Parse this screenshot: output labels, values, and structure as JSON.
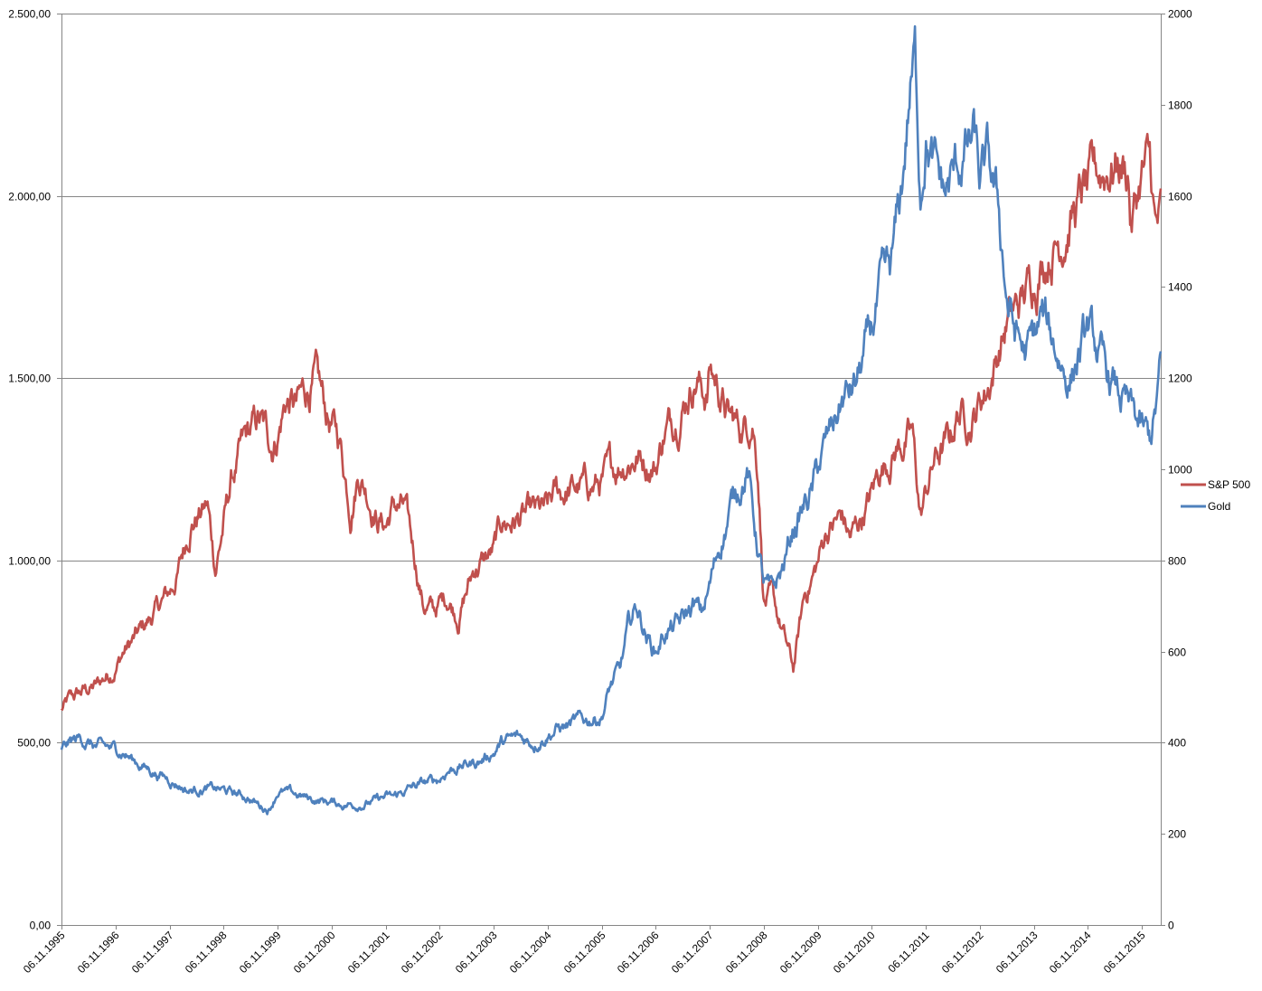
{
  "chart_data": {
    "type": "line",
    "title": "",
    "xlabel": "",
    "ylabel": "",
    "ylabel_right": "",
    "grid": true,
    "legend_position": "right",
    "x_ticks": [
      "06.11.1995",
      "06.11.1996",
      "06.11.1997",
      "06.11.1998",
      "06.11.1999",
      "06.11.2000",
      "06.11.2001",
      "06.11.2002",
      "06.11.2003",
      "06.11.2004",
      "06.11.2005",
      "06.11.2006",
      "06.11.2007",
      "06.11.2008",
      "06.11.2009",
      "06.11.2010",
      "06.11.2011",
      "06.11.2012",
      "06.11.2013",
      "06.11.2014",
      "06.11.2015"
    ],
    "y_left": {
      "ylim": [
        0,
        2500
      ],
      "ticks": [
        0,
        500,
        1000,
        1500,
        2000,
        2500
      ],
      "tick_labels": [
        "0,00",
        "500,00",
        "1.000,00",
        "1.500,00",
        "2.000,00",
        "2.500,00"
      ]
    },
    "y_right": {
      "ylim": [
        0,
        2000
      ],
      "ticks": [
        0,
        200,
        400,
        600,
        800,
        1000,
        1200,
        1400,
        1600,
        1800,
        2000
      ],
      "tick_labels": [
        "0",
        "200",
        "400",
        "600",
        "800",
        "1000",
        "1200",
        "1400",
        "1600",
        "1800",
        "2000"
      ]
    },
    "x_start": 1995.85,
    "x_end": 2016.2,
    "series": [
      {
        "name": "S&P 500",
        "axis": "left",
        "color": "#C0504D",
        "x": [
          1995.85,
          1996.0,
          1996.25,
          1996.5,
          1996.85,
          1997.0,
          1997.25,
          1997.5,
          1997.85,
          1998.0,
          1998.25,
          1998.55,
          1998.7,
          1998.85,
          1999.0,
          1999.25,
          1999.5,
          1999.75,
          1999.85,
          2000.0,
          2000.2,
          2000.4,
          2000.55,
          2000.75,
          2000.85,
          2001.0,
          2001.1,
          2001.2,
          2001.35,
          2001.5,
          2001.7,
          2001.85,
          2002.0,
          2002.2,
          2002.4,
          2002.55,
          2002.75,
          2002.85,
          2003.0,
          2003.2,
          2003.5,
          2003.85,
          2004.0,
          2004.5,
          2004.85,
          2005.0,
          2005.5,
          2005.85,
          2006.0,
          2006.3,
          2006.5,
          2006.85,
          2007.0,
          2007.3,
          2007.45,
          2007.6,
          2007.8,
          2007.85,
          2008.0,
          2008.2,
          2008.45,
          2008.65,
          2008.75,
          2008.85,
          2009.0,
          2009.2,
          2009.4,
          2009.6,
          2009.85,
          2010.0,
          2010.3,
          2010.45,
          2010.6,
          2010.85,
          2011.0,
          2011.3,
          2011.6,
          2011.75,
          2011.85,
          2012.0,
          2012.3,
          2012.45,
          2012.7,
          2012.85,
          2013.0,
          2013.35,
          2013.6,
          2013.85,
          2014.0,
          2014.1,
          2014.3,
          2014.55,
          2014.8,
          2014.85,
          2015.0,
          2015.2,
          2015.4,
          2015.6,
          2015.65,
          2015.85,
          2016.0,
          2016.1,
          2016.2
        ],
        "values": [
          590,
          615,
          640,
          655,
          710,
          750,
          790,
          840,
          910,
          960,
          1110,
          1150,
          980,
          1100,
          1220,
          1320,
          1380,
          1320,
          1350,
          1440,
          1420,
          1470,
          1490,
          1400,
          1370,
          1330,
          1240,
          1150,
          1250,
          1200,
          1120,
          1100,
          1150,
          1140,
          1000,
          880,
          860,
          880,
          900,
          850,
          980,
          1020,
          1100,
          1120,
          1130,
          1180,
          1200,
          1210,
          1240,
          1280,
          1290,
          1260,
          1350,
          1420,
          1470,
          1510,
          1450,
          1530,
          1480,
          1390,
          1360,
          1400,
          1250,
          900,
          890,
          800,
          700,
          900,
          990,
          1080,
          1120,
          1060,
          1100,
          1180,
          1250,
          1310,
          1340,
          1120,
          1180,
          1270,
          1330,
          1410,
          1390,
          1440,
          1480,
          1650,
          1700,
          1780,
          1820,
          1850,
          1880,
          1950,
          2010,
          2000,
          2050,
          2080,
          2100,
          2070,
          1920,
          2060,
          2080,
          1900,
          1930
        ]
      },
      {
        "name": "Gold",
        "axis": "right",
        "color": "#4F81BD",
        "x": [
          1995.85,
          1996.0,
          1996.2,
          1996.5,
          1996.85,
          1997.0,
          1997.2,
          1997.5,
          1997.85,
          1998.0,
          1998.2,
          1998.5,
          1998.85,
          1999.0,
          1999.3,
          1999.55,
          1999.7,
          1999.85,
          2000.0,
          2000.2,
          2000.5,
          2000.85,
          2001.0,
          2001.3,
          2001.6,
          2001.85,
          2002.0,
          2002.3,
          2002.55,
          2002.85,
          2003.0,
          2003.3,
          2003.6,
          2003.85,
          2004.0,
          2004.3,
          2004.6,
          2004.85,
          2005.0,
          2005.3,
          2005.6,
          2005.85,
          2006.0,
          2006.2,
          2006.35,
          2006.5,
          2006.7,
          2006.85,
          2007.0,
          2007.3,
          2007.55,
          2007.7,
          2007.85,
          2008.0,
          2008.2,
          2008.35,
          2008.55,
          2008.7,
          2008.85,
          2009.0,
          2009.2,
          2009.4,
          2009.6,
          2009.75,
          2009.85,
          2010.0,
          2010.3,
          2010.55,
          2010.75,
          2010.85,
          2011.0,
          2011.2,
          2011.4,
          2011.55,
          2011.65,
          2011.75,
          2011.85,
          2012.0,
          2012.2,
          2012.4,
          2012.6,
          2012.75,
          2012.85,
          2013.0,
          2013.2,
          2013.35,
          2013.5,
          2013.7,
          2013.85,
          2014.0,
          2014.2,
          2014.5,
          2014.85,
          2015.0,
          2015.2,
          2015.45,
          2015.65,
          2015.85,
          2016.0,
          2016.1,
          2016.2
        ],
        "values": [
          388,
          400,
          410,
          390,
          385,
          380,
          360,
          340,
          320,
          310,
          295,
          300,
          295,
          290,
          280,
          260,
          255,
          295,
          290,
          285,
          275,
          270,
          265,
          265,
          270,
          280,
          280,
          300,
          310,
          320,
          340,
          350,
          360,
          380,
          400,
          410,
          400,
          420,
          430,
          440,
          450,
          460,
          520,
          560,
          650,
          700,
          630,
          600,
          640,
          660,
          700,
          680,
          740,
          820,
          900,
          960,
          1000,
          860,
          750,
          720,
          780,
          870,
          920,
          950,
          1000,
          1050,
          1150,
          1180,
          1260,
          1300,
          1380,
          1420,
          1600,
          1820,
          1900,
          1620,
          1750,
          1660,
          1600,
          1650,
          1700,
          1720,
          1620,
          1660,
          1560,
          1380,
          1300,
          1250,
          1280,
          1330,
          1280,
          1200,
          1300,
          1260,
          1200,
          1160,
          1120,
          1080,
          1060,
          1120,
          1220
        ]
      }
    ]
  }
}
